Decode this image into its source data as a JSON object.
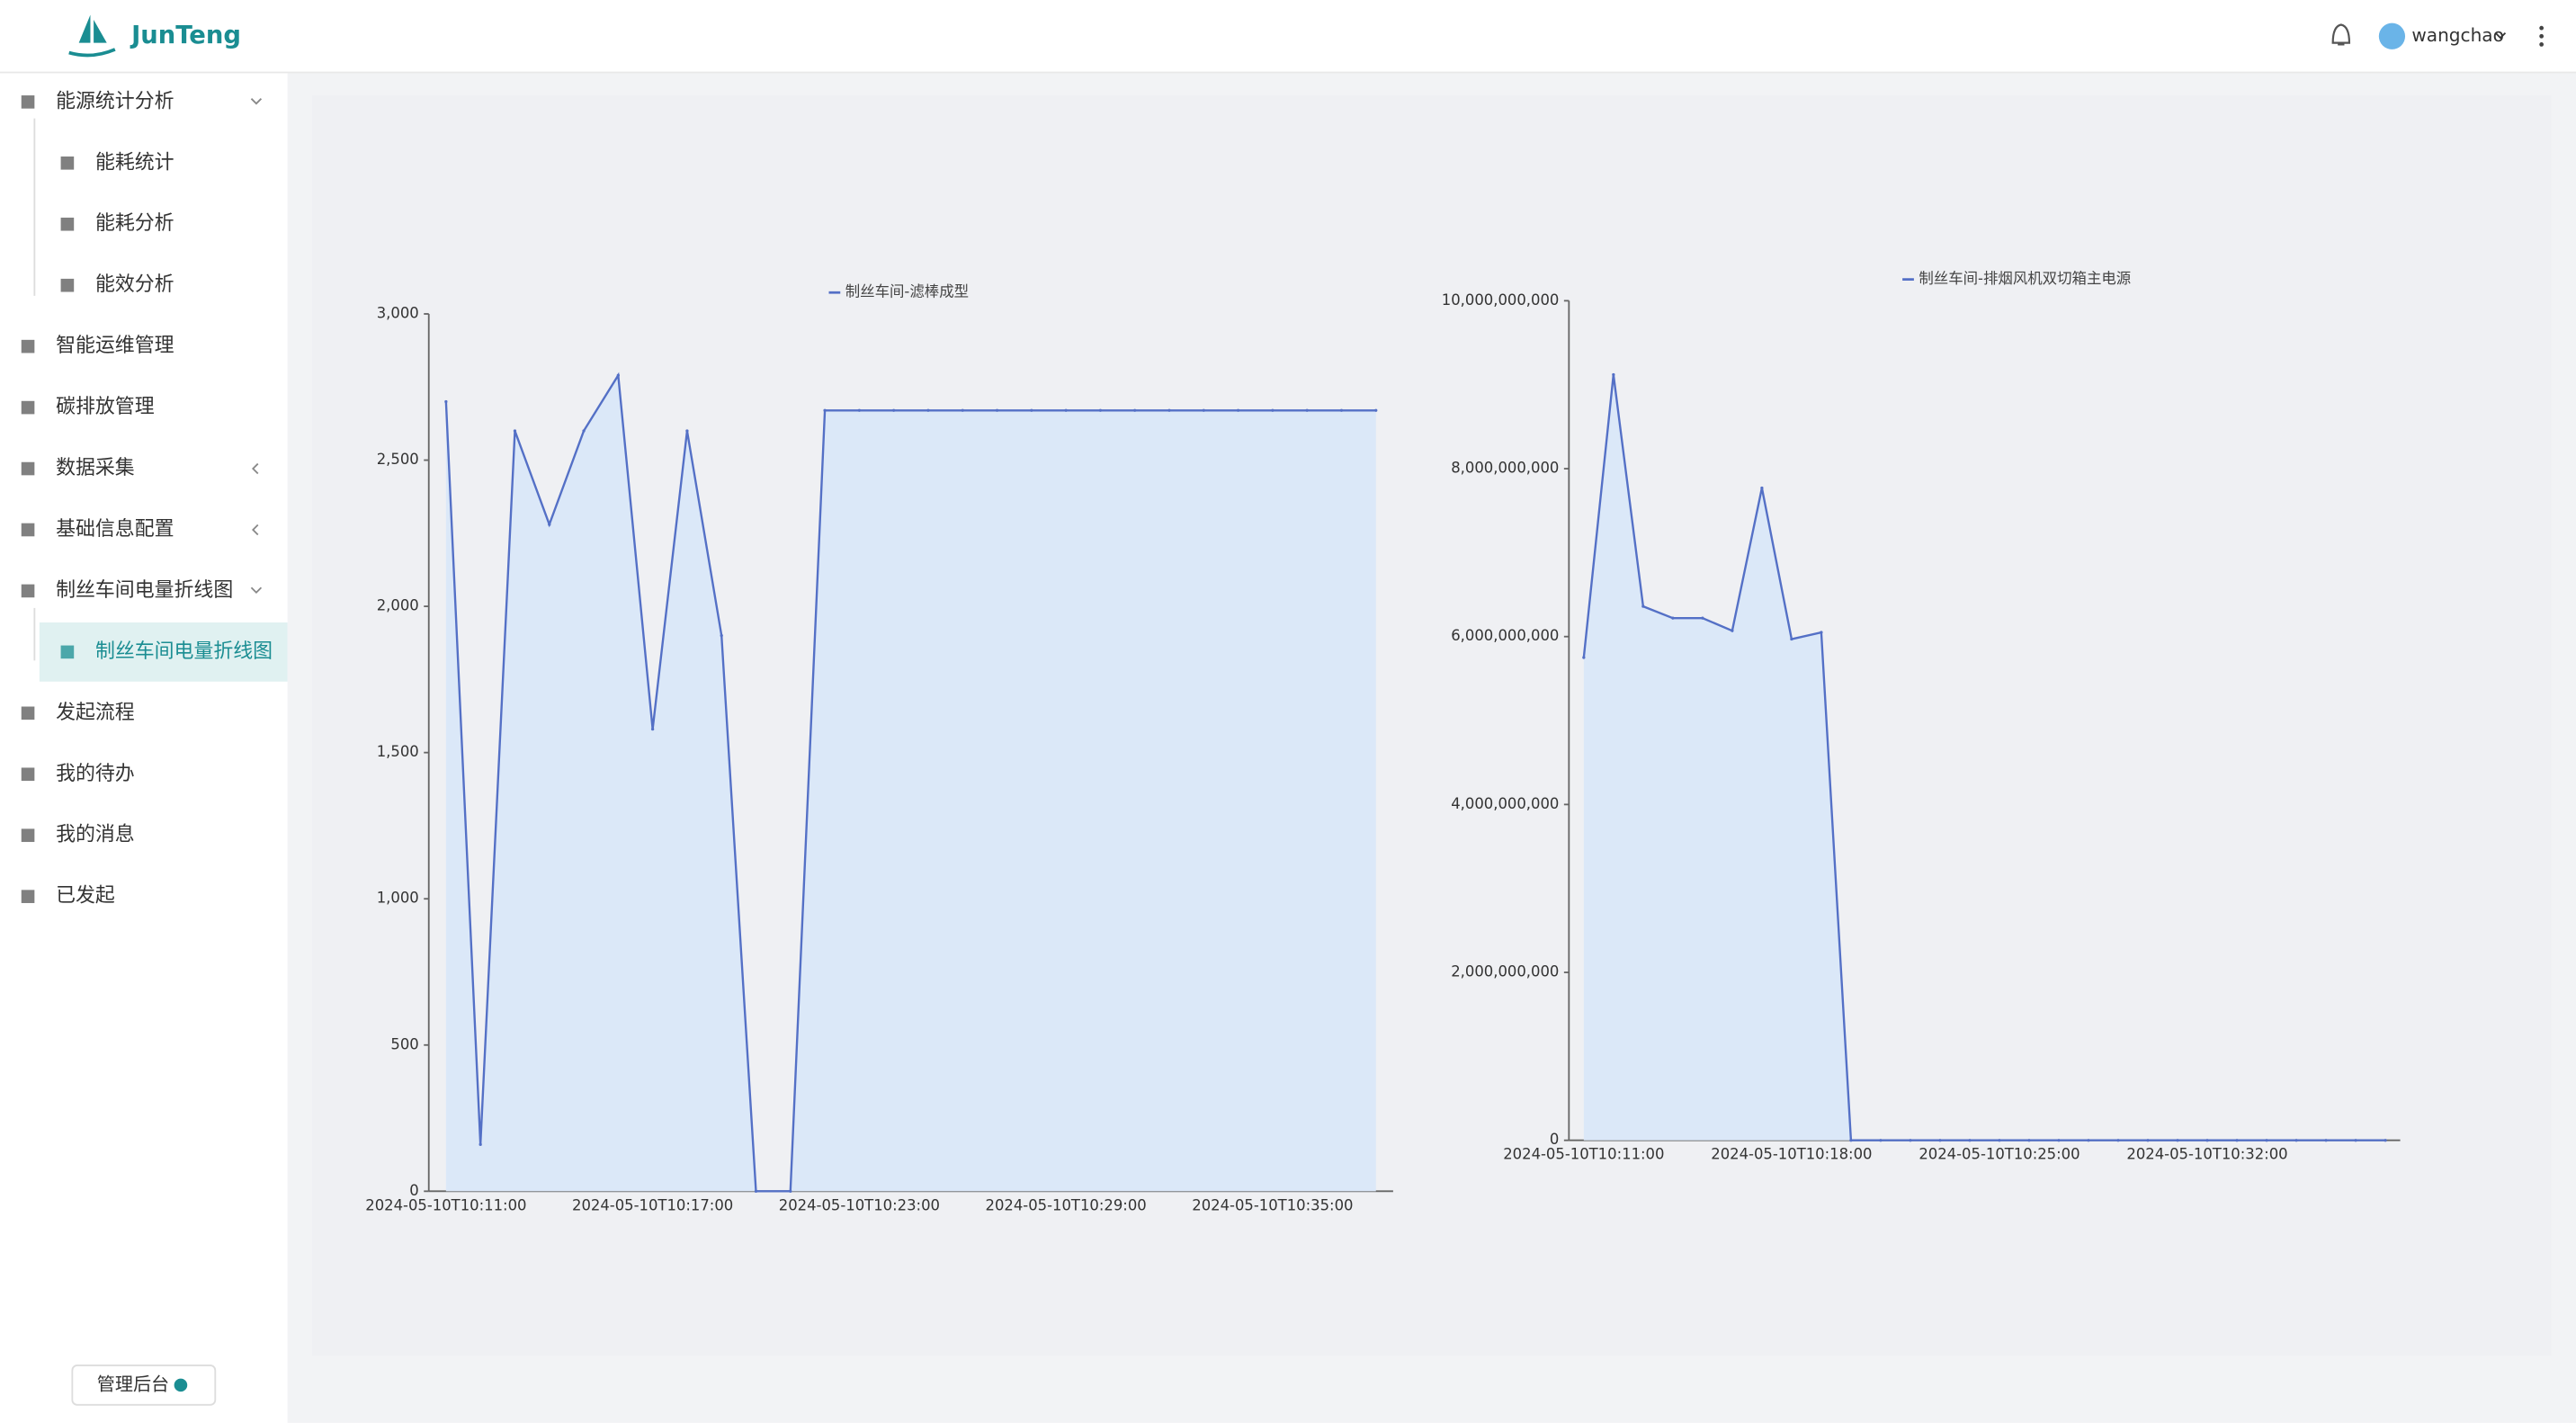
{
  "header": {
    "brand": "JunTeng",
    "user": "wangchao"
  },
  "sidebar": {
    "menu": [
      {
        "label": "能源统计分析",
        "level": 1,
        "expanded": true
      },
      {
        "label": "能耗统计",
        "level": 2
      },
      {
        "label": "能耗分析",
        "level": 2
      },
      {
        "label": "能效分析",
        "level": 2
      },
      {
        "label": "智能运维管理",
        "level": 1
      },
      {
        "label": "碳排放管理",
        "level": 1
      },
      {
        "label": "数据采集",
        "level": 1,
        "expanded": false
      },
      {
        "label": "基础信息配置",
        "level": 1,
        "expanded": false
      },
      {
        "label": "制丝车间电量折线图",
        "level": 1,
        "expanded": true
      },
      {
        "label": "制丝车间电量折线图",
        "level": 2,
        "active": true
      },
      {
        "label": "发起流程",
        "level": 1
      },
      {
        "label": "我的待办",
        "level": 1
      },
      {
        "label": "我的消息",
        "level": 1
      },
      {
        "label": "已发起",
        "level": 1
      }
    ],
    "admin_button": "管理后台"
  },
  "chart_data": [
    {
      "type": "line",
      "area": true,
      "categories": [
        "2024-05-10T10:11:00",
        null,
        null,
        null,
        null,
        null,
        "2024-05-10T10:17:00",
        null,
        null,
        null,
        null,
        null,
        "2024-05-10T10:23:00",
        null,
        null,
        null,
        null,
        null,
        "2024-05-10T10:29:00",
        null,
        null,
        null,
        null,
        null,
        "2024-05-10T10:35:00",
        null,
        null,
        null
      ],
      "series": [
        {
          "name": "制丝车间-滤棒成型",
          "color": "#5470c6",
          "values": [
            2700,
            160,
            2600,
            2280,
            2600,
            2790,
            1580,
            2600,
            1900,
            0,
            0,
            2670,
            2670,
            2670,
            2670,
            2670,
            2670,
            2670,
            2670,
            2670,
            2670,
            2670,
            2670,
            2670,
            2670,
            2670,
            2670,
            2670
          ]
        }
      ],
      "ylim": [
        0,
        3000
      ],
      "yticks": [
        0,
        500,
        {
          "value": 1000,
          "label": "1,000"
        },
        {
          "value": 1500,
          "label": "1,500"
        },
        {
          "value": 2000,
          "label": "2,000"
        },
        {
          "value": 2500,
          "label": "2,500"
        },
        {
          "value": 3000,
          "label": "3,000"
        }
      ]
    },
    {
      "type": "line",
      "area": true,
      "categories": [
        "2024-05-10T10:11:00",
        null,
        null,
        null,
        null,
        null,
        null,
        "2024-05-10T10:18:00",
        null,
        null,
        null,
        null,
        null,
        null,
        "2024-05-10T10:25:00",
        null,
        null,
        null,
        null,
        null,
        null,
        "2024-05-10T10:32:00",
        null,
        null,
        null,
        null,
        null,
        null
      ],
      "series": [
        {
          "name": "制丝车间-排烟风机双切箱主电源",
          "color": "#5470c6",
          "values": [
            5750000000,
            9120000000,
            6360000000,
            6220000000,
            6220000000,
            6070000000,
            7770000000,
            5970000000,
            6050000000,
            0,
            0,
            0,
            0,
            0,
            0,
            0,
            0,
            0,
            0,
            0,
            0,
            0,
            0,
            0,
            0,
            0,
            0,
            0
          ]
        }
      ],
      "ylim": [
        0,
        10000000000
      ],
      "yticks": [
        0,
        {
          "value": 2000000000,
          "label": "2,000,000,000"
        },
        {
          "value": 4000000000,
          "label": "4,000,000,000"
        },
        {
          "value": 6000000000,
          "label": "6,000,000,000"
        },
        {
          "value": 8000000000,
          "label": "8,000,000,000"
        },
        {
          "value": 10000000000,
          "label": "10,000,000,000"
        }
      ]
    }
  ]
}
